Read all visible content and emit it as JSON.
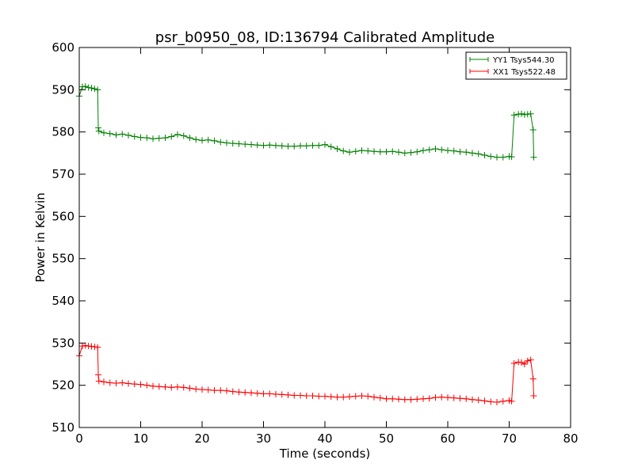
{
  "chart_data": {
    "type": "line",
    "title": "psr_b0950_08, ID:136794 Calibrated Amplitude",
    "xlabel": "Time (seconds)",
    "ylabel": "Power in Kelvin",
    "xlim": [
      0,
      80
    ],
    "ylim": [
      510,
      600
    ],
    "xticks": [
      0,
      10,
      20,
      30,
      40,
      50,
      60,
      70,
      80
    ],
    "yticks": [
      510,
      520,
      530,
      540,
      550,
      560,
      570,
      580,
      590,
      600
    ],
    "grid": false,
    "legend_position": "top-right",
    "series": [
      {
        "name": "YY1 Tsys544.30",
        "color": "#008000",
        "marker": "+",
        "x": [
          0,
          0.5,
          1,
          1.5,
          2,
          2.5,
          3,
          3.1,
          3.2,
          4,
          5,
          6,
          7,
          8,
          9,
          10,
          11,
          12,
          13,
          14,
          15,
          16,
          17,
          18,
          19,
          20,
          21,
          22,
          23,
          24,
          25,
          26,
          27,
          28,
          29,
          30,
          31,
          32,
          33,
          34,
          35,
          36,
          37,
          38,
          39,
          40,
          41,
          42,
          43,
          44,
          45,
          46,
          47,
          48,
          49,
          50,
          51,
          52,
          53,
          54,
          55,
          56,
          57,
          58,
          59,
          60,
          61,
          62,
          63,
          64,
          65,
          66,
          67,
          68,
          69,
          70,
          70.4,
          70.8,
          71.5,
          72,
          72.5,
          73,
          73.5,
          73.9,
          74
        ],
        "y": [
          588.5,
          590.7,
          590.8,
          590.5,
          590.4,
          590.2,
          590.0,
          581.0,
          580.2,
          579.8,
          579.6,
          579.3,
          579.5,
          579.2,
          578.9,
          578.7,
          578.6,
          578.4,
          578.5,
          578.6,
          578.9,
          579.4,
          579.1,
          578.6,
          578.2,
          578.0,
          578.1,
          577.9,
          577.6,
          577.4,
          577.3,
          577.2,
          577.1,
          577.0,
          576.9,
          576.8,
          576.9,
          576.8,
          576.7,
          576.6,
          576.6,
          576.7,
          576.7,
          576.8,
          576.8,
          577.0,
          576.5,
          576.0,
          575.5,
          575.2,
          575.4,
          575.6,
          575.5,
          575.4,
          575.3,
          575.3,
          575.4,
          575.2,
          575.0,
          575.1,
          575.3,
          575.6,
          575.8,
          576.0,
          575.8,
          575.6,
          575.5,
          575.3,
          575.2,
          575.0,
          574.8,
          574.5,
          574.2,
          574.0,
          574.0,
          574.2,
          574.1,
          584.0,
          584.2,
          584.3,
          584.1,
          584.2,
          584.3,
          580.5,
          574.0
        ]
      },
      {
        "name": "XX1 Tsys522.48",
        "color": "#ff0000",
        "marker": "+",
        "x": [
          0,
          0.5,
          1,
          1.5,
          2,
          2.5,
          3,
          3.1,
          3.2,
          4,
          5,
          6,
          7,
          8,
          9,
          10,
          11,
          12,
          13,
          14,
          15,
          16,
          17,
          18,
          19,
          20,
          21,
          22,
          23,
          24,
          25,
          26,
          27,
          28,
          29,
          30,
          31,
          32,
          33,
          34,
          35,
          36,
          37,
          38,
          39,
          40,
          41,
          42,
          43,
          44,
          45,
          46,
          47,
          48,
          49,
          50,
          51,
          52,
          53,
          54,
          55,
          56,
          57,
          58,
          59,
          60,
          61,
          62,
          63,
          64,
          65,
          66,
          67,
          68,
          69,
          70,
          70.4,
          70.8,
          71.5,
          72,
          72.5,
          73,
          73.5,
          73.9,
          74
        ],
        "y": [
          527.0,
          529.3,
          529.4,
          529.3,
          529.2,
          529.1,
          529.0,
          522.5,
          521.0,
          520.8,
          520.6,
          520.5,
          520.6,
          520.4,
          520.3,
          520.2,
          520.0,
          519.8,
          519.7,
          519.6,
          519.5,
          519.6,
          519.5,
          519.3,
          519.1,
          519.0,
          518.9,
          518.8,
          518.8,
          518.7,
          518.5,
          518.4,
          518.3,
          518.2,
          518.1,
          518.0,
          518.0,
          517.9,
          517.8,
          517.7,
          517.6,
          517.6,
          517.5,
          517.5,
          517.4,
          517.4,
          517.3,
          517.2,
          517.2,
          517.3,
          517.4,
          517.5,
          517.4,
          517.2,
          517.0,
          516.8,
          516.8,
          516.7,
          516.6,
          516.6,
          516.7,
          516.8,
          516.9,
          517.1,
          517.2,
          517.1,
          517.0,
          516.9,
          516.8,
          516.6,
          516.5,
          516.3,
          516.1,
          516.0,
          516.2,
          516.4,
          516.2,
          525.2,
          525.5,
          525.4,
          525.0,
          525.8,
          526.0,
          521.5,
          517.5
        ]
      }
    ]
  }
}
